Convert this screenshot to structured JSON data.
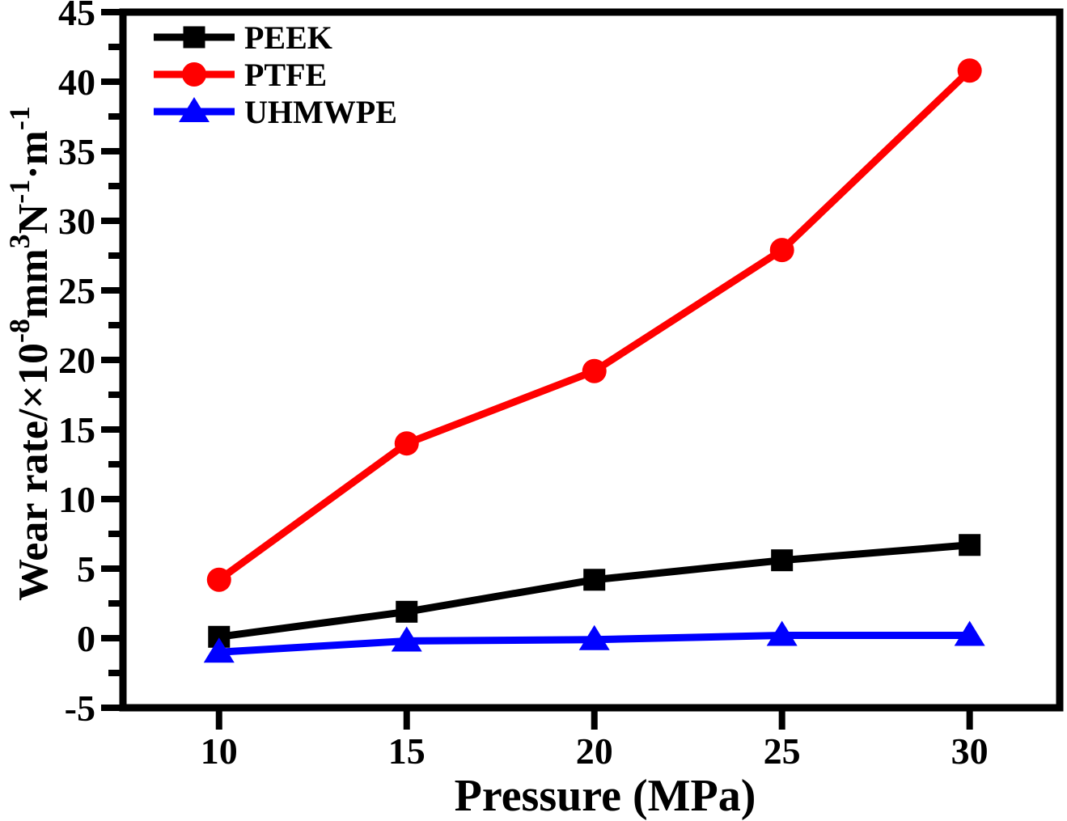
{
  "chart_data": {
    "type": "line",
    "x": [
      10,
      15,
      20,
      25,
      30
    ],
    "series": [
      {
        "name": "PEEK",
        "color": "#000000",
        "marker": "square",
        "values": [
          0.1,
          1.9,
          4.2,
          5.6,
          6.7
        ]
      },
      {
        "name": "PTFE",
        "color": "#ff0000",
        "marker": "circle",
        "values": [
          4.2,
          14.0,
          19.2,
          27.9,
          40.8
        ]
      },
      {
        "name": "UHMWPE",
        "color": "#0000ff",
        "marker": "triangle",
        "values": [
          -1.0,
          -0.2,
          -0.1,
          0.2,
          0.2
        ]
      }
    ],
    "xlabel": "Pressure (MPa)",
    "ylabel": "Wear rate/×10⁻⁸mm³N⁻¹·m⁻¹",
    "ylabel_segments": [
      {
        "text": "Wear rate/×10",
        "sup": false
      },
      {
        "text": "-8",
        "sup": true
      },
      {
        "text": "mm",
        "sup": false
      },
      {
        "text": "3",
        "sup": true
      },
      {
        "text": "N",
        "sup": false
      },
      {
        "text": "-1",
        "sup": true
      },
      {
        "text": "·m",
        "sup": false
      },
      {
        "text": "-1",
        "sup": true
      }
    ],
    "xlim": [
      7.44,
      32.4
    ],
    "ylim": [
      -5,
      45
    ],
    "xticks": [
      10,
      15,
      20,
      25,
      30
    ],
    "yticks": [
      -5,
      0,
      5,
      10,
      15,
      20,
      25,
      30,
      35,
      40,
      45
    ],
    "y_minor_step": 2.5,
    "grid": false,
    "legend_position": "top-left",
    "axis_color": "#000000",
    "background_color": "#ffffff"
  }
}
